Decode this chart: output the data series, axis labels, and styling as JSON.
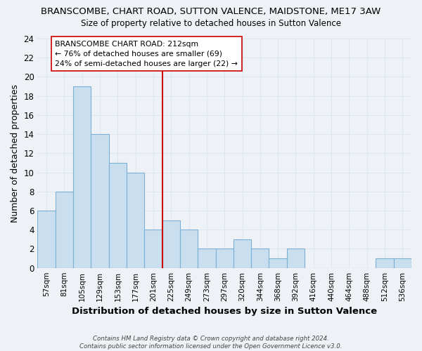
{
  "title": "BRANSCOMBE, CHART ROAD, SUTTON VALENCE, MAIDSTONE, ME17 3AW",
  "subtitle": "Size of property relative to detached houses in Sutton Valence",
  "xlabel": "Distribution of detached houses by size in Sutton Valence",
  "ylabel": "Number of detached properties",
  "bins": [
    "57sqm",
    "81sqm",
    "105sqm",
    "129sqm",
    "153sqm",
    "177sqm",
    "201sqm",
    "225sqm",
    "249sqm",
    "273sqm",
    "297sqm",
    "320sqm",
    "344sqm",
    "368sqm",
    "392sqm",
    "416sqm",
    "440sqm",
    "464sqm",
    "488sqm",
    "512sqm",
    "536sqm"
  ],
  "values": [
    6,
    8,
    19,
    14,
    11,
    10,
    4,
    5,
    4,
    2,
    2,
    3,
    2,
    1,
    2,
    0,
    0,
    0,
    0,
    1,
    1
  ],
  "bar_color": "#c9dff0",
  "bar_edge_color": "#7bafd4",
  "reference_line_color": "#cc0000",
  "annotation_text": "BRANSCOMBE CHART ROAD: 212sqm\n← 76% of detached houses are smaller (69)\n24% of semi-detached houses are larger (22) →",
  "annotation_box_color": "white",
  "annotation_box_edge_color": "#cc0000",
  "ylim": [
    0,
    24
  ],
  "yticks": [
    0,
    2,
    4,
    6,
    8,
    10,
    12,
    14,
    16,
    18,
    20,
    22,
    24
  ],
  "footer": "Contains HM Land Registry data © Crown copyright and database right 2024.\nContains public sector information licensed under the Open Government Licence v3.0.",
  "grid_color": "#dce8f0",
  "background_color": "#eef2f7"
}
